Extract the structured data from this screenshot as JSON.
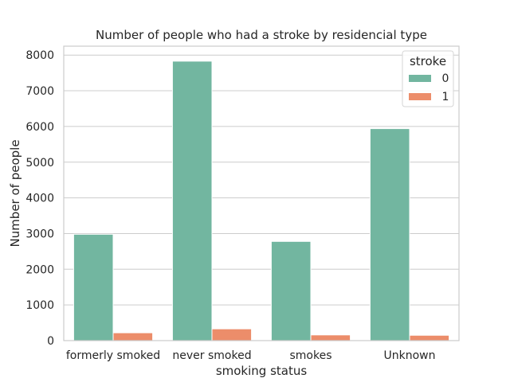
{
  "chart_data": {
    "type": "bar",
    "title": "Number of people who had a stroke by residencial type",
    "xlabel": "smoking status",
    "ylabel": "Number of people",
    "categories": [
      "formerly smoked",
      "never smoked",
      "smokes",
      "Unknown"
    ],
    "series": [
      {
        "name": "0",
        "values": [
          2980,
          7830,
          2780,
          5940
        ],
        "color": "#72b6a0"
      },
      {
        "name": "1",
        "values": [
          220,
          330,
          160,
          150
        ],
        "color": "#ec8d6a"
      }
    ],
    "ylim": [
      0,
      8250
    ],
    "yticks": [
      0,
      1000,
      2000,
      3000,
      4000,
      5000,
      6000,
      7000,
      8000
    ],
    "grid": "horizontal",
    "legend": {
      "title": "stroke",
      "placement": "top-right"
    }
  }
}
